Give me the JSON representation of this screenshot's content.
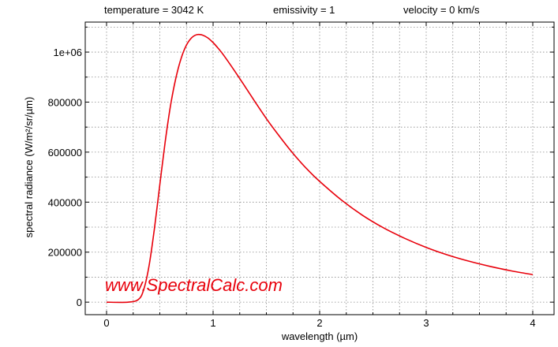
{
  "header": {
    "temperature": "temperature = 3042 K",
    "emissivity": "emissivity = 1",
    "velocity": "velocity = 0 km/s"
  },
  "watermark": "www.SpectralCalc.com",
  "colors": {
    "curve": "#e8000b",
    "grid": "#8a8a8a",
    "axis": "#000000"
  },
  "chart_data": {
    "type": "line",
    "xlabel": "wavelength (µm)",
    "ylabel": "spectral radiance (W/m²/sr/µm)",
    "xlim": [
      -0.2,
      4.2
    ],
    "ylim": [
      -50000,
      1120000
    ],
    "x_ticks": [
      {
        "value": 0,
        "label": "0"
      },
      {
        "value": 1,
        "label": "1"
      },
      {
        "value": 2,
        "label": "2"
      },
      {
        "value": 3,
        "label": "3"
      },
      {
        "value": 4,
        "label": "4"
      }
    ],
    "y_ticks": [
      {
        "value": 0,
        "label": "0"
      },
      {
        "value": 200000,
        "label": "200000"
      },
      {
        "value": 400000,
        "label": "400000"
      },
      {
        "value": 600000,
        "label": "600000"
      },
      {
        "value": 800000,
        "label": "800000"
      },
      {
        "value": 1000000,
        "label": "1e+06"
      }
    ],
    "grid": true,
    "series": [
      {
        "x": [
          0,
          0.2,
          0.3,
          0.35,
          0.4,
          0.45,
          0.5,
          0.55,
          0.6,
          0.65,
          0.7,
          0.75,
          0.8,
          0.85,
          0.9,
          0.95,
          1.0,
          1.05,
          1.1,
          1.2,
          1.3,
          1.4,
          1.5,
          1.6,
          1.7,
          1.8,
          1.9,
          2.0,
          2.2,
          2.4,
          2.6,
          2.8,
          3.0,
          3.2,
          3.4,
          3.6,
          3.8,
          4.0
        ],
        "y": [
          0,
          0,
          11000,
          52000,
          148000,
          296000,
          470000,
          640000,
          785000,
          895000,
          975000,
          1028000,
          1058000,
          1070000,
          1068000,
          1057000,
          1038000,
          1014000,
          987000,
          926000,
          862000,
          797000,
          734000,
          676000,
          621000,
          570000,
          524000,
          483000,
          410000,
          348000,
          297000,
          255000,
          219000,
          189000,
          164000,
          143000,
          125000,
          110000
        ]
      }
    ]
  }
}
